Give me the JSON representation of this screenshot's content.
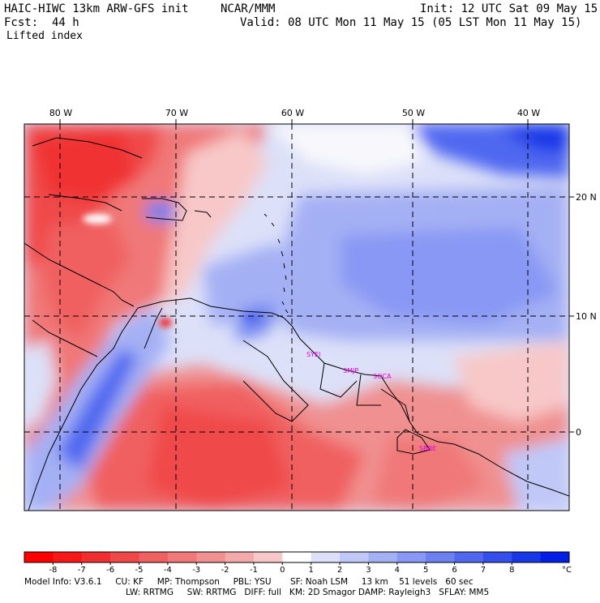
{
  "header": {
    "model_title": "HAIC-HIWC 13km ARW-GFS init",
    "org": "NCAR/MMM",
    "init_label": "Init: 12 UTC Sat 09 May 15",
    "fcst_label": "Fcst:",
    "fcst_value": "44 h",
    "valid_label": "Valid: 08 UTC Mon 11 May 15 (05 LST Mon 11 May 15)",
    "field_name": "Lifted index"
  },
  "map": {
    "lon_labels": [
      "80 W",
      "70 W",
      "60 W",
      "50 W",
      "40 W"
    ],
    "lat_labels": [
      "20 N",
      "10 N",
      "0"
    ],
    "stations": [
      "SYEI",
      "SMJP",
      "SOCA",
      "SBBE"
    ],
    "colors": {
      "station": "#e000e0",
      "neg_dark": "#e83030",
      "neg_mid": "#f07878",
      "neg_light": "#f8c8c8",
      "neutral": "#ffffff",
      "pos_light": "#c8d4f8",
      "pos_mid": "#7890f0",
      "pos_dark": "#2030e8"
    }
  },
  "colorbar": {
    "labels": [
      "-8",
      "-7",
      "-6",
      "-5",
      "-4",
      "-3",
      "-2",
      "-1",
      "0",
      "1",
      "2",
      "3",
      "4",
      "5",
      "6",
      "7",
      "8"
    ],
    "unit": "°C",
    "colors": [
      "#ff0000",
      "#f81818",
      "#f03030",
      "#f04848",
      "#f06060",
      "#f07878",
      "#f09090",
      "#f4aaaa",
      "#f8c8c8",
      "#ffffff",
      "#dce0f8",
      "#c0c8f8",
      "#a4b0f4",
      "#8898f4",
      "#6c80f0",
      "#5068f0",
      "#3450ec",
      "#1838e8",
      "#0020e8"
    ]
  },
  "footer": {
    "line1": "Model Info: V3.6.1     CU: KF     MP: Thompson     PBL: YSU       SF: Noah LSM     13 km    51 levels   60 sec",
    "line2": "LW: RRTMG     SW: RRTMG   DIFF: full   KM: 2D Smagor DAMP: Rayleigh3   SFLAY: MM5"
  }
}
